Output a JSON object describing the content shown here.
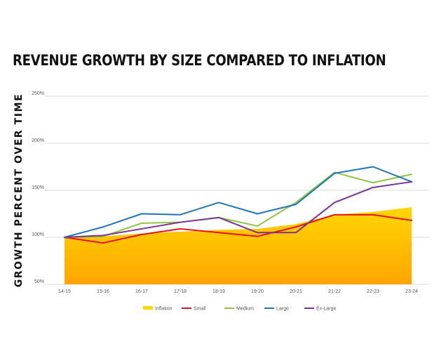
{
  "chart_data": {
    "type": "line",
    "title": "REVENUE GROWTH BY SIZE COMPARED TO INFLATION",
    "xlabel": "",
    "ylabel": "GROWTH PERCENT OVER TIME",
    "categories": [
      "14-15",
      "15-16",
      "16-17",
      "17-18",
      "18-19",
      "19-20",
      "20-21",
      "21-22",
      "22-23",
      "23-24"
    ],
    "y_ticks": [
      "50%",
      "100%",
      "150%",
      "200%",
      "250%"
    ],
    "ylim": [
      50,
      250
    ],
    "grid": true,
    "legend_position": "bottom",
    "series": [
      {
        "name": "Inflation",
        "render": "area",
        "color": "#FFD700",
        "color_bottom": "#FFA500",
        "values": [
          100,
          101,
          104,
          106,
          108,
          109,
          114,
          124,
          127,
          132
        ]
      },
      {
        "name": "Small",
        "render": "line",
        "color": "#E8101A",
        "values": [
          100,
          94,
          103,
          109,
          105,
          101,
          111,
          124,
          124,
          118
        ]
      },
      {
        "name": "Medium",
        "render": "line",
        "color": "#8DC63F",
        "values": [
          100,
          101,
          115,
          116,
          121,
          112,
          137,
          169,
          158,
          167
        ]
      },
      {
        "name": "Large",
        "render": "line",
        "color": "#1F75B5",
        "values": [
          100,
          111,
          125,
          124,
          137,
          125,
          135,
          168,
          175,
          159
        ]
      },
      {
        "name": "Ex-Large",
        "render": "line",
        "color": "#7B3294",
        "values": [
          100,
          102,
          109,
          116,
          121,
          105,
          105,
          137,
          153,
          159
        ]
      }
    ]
  }
}
